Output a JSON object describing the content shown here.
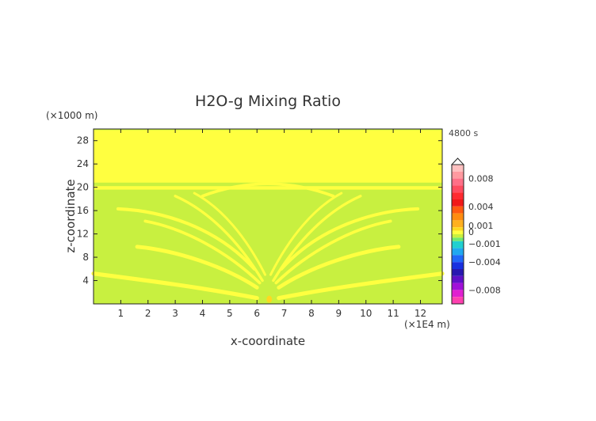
{
  "chart_data": {
    "type": "heatmap",
    "title": "H2O-g Mixing Ratio",
    "time_label": "4800 s",
    "xlabel": "x-coordinate",
    "ylabel": "z-coordinate",
    "x_unit": "(×1E4 m)",
    "y_unit": "(×1000 m)",
    "xlim": [
      0,
      12.8
    ],
    "ylim": [
      0,
      30
    ],
    "x_ticks": [
      1,
      2,
      3,
      4,
      5,
      6,
      7,
      8,
      9,
      10,
      11,
      12
    ],
    "y_ticks": [
      4,
      8,
      12,
      16,
      20,
      24,
      28
    ],
    "background_color": "#c8f040",
    "colorbar": {
      "labels": [
        {
          "value": 0.008,
          "text": "0.008"
        },
        {
          "value": 0.004,
          "text": "0.004"
        },
        {
          "value": 0.001,
          "text": "0.001"
        },
        {
          "value": 0,
          "text": "0"
        },
        {
          "value": -0.001,
          "text": "−0.001"
        },
        {
          "value": -0.004,
          "text": "−0.004"
        },
        {
          "value": -0.008,
          "text": "−0.008"
        }
      ],
      "bands": [
        {
          "from": 0.009,
          "to": 0.01,
          "color": "#ffc0c0"
        },
        {
          "from": 0.008,
          "to": 0.009,
          "color": "#ff9aa0"
        },
        {
          "from": 0.007,
          "to": 0.008,
          "color": "#ff7088"
        },
        {
          "from": 0.006,
          "to": 0.007,
          "color": "#ff4c60"
        },
        {
          "from": 0.005,
          "to": 0.006,
          "color": "#ff2a30"
        },
        {
          "from": 0.004,
          "to": 0.005,
          "color": "#f01818"
        },
        {
          "from": 0.003,
          "to": 0.004,
          "color": "#ff5a10"
        },
        {
          "from": 0.002,
          "to": 0.003,
          "color": "#ff8c10"
        },
        {
          "from": 0.001,
          "to": 0.002,
          "color": "#ffb020"
        },
        {
          "from": 0.0005,
          "to": 0.001,
          "color": "#ffd820"
        },
        {
          "from": 0.0,
          "to": 0.0005,
          "color": "#ffff40"
        },
        {
          "from": -0.0005,
          "to": 0.0,
          "color": "#c8f040"
        },
        {
          "from": -0.001,
          "to": -0.0005,
          "color": "#70e870"
        },
        {
          "from": -0.002,
          "to": -0.001,
          "color": "#20d0d0"
        },
        {
          "from": -0.003,
          "to": -0.002,
          "color": "#20a8f0"
        },
        {
          "from": -0.004,
          "to": -0.003,
          "color": "#2068f8"
        },
        {
          "from": -0.005,
          "to": -0.004,
          "color": "#1830e0"
        },
        {
          "from": -0.006,
          "to": -0.005,
          "color": "#2818b0"
        },
        {
          "from": -0.007,
          "to": -0.006,
          "color": "#6010c8"
        },
        {
          "from": -0.008,
          "to": -0.007,
          "color": "#a010d8"
        },
        {
          "from": -0.009,
          "to": -0.008,
          "color": "#e020d0"
        },
        {
          "from": -0.01,
          "to": -0.009,
          "color": "#ff40b0"
        }
      ]
    },
    "features": [
      {
        "kind": "band",
        "level": 0.0003,
        "x": [
          0,
          12.8
        ],
        "z": [
          20.8,
          29.8
        ]
      },
      {
        "kind": "band",
        "level": 0.0003,
        "x": [
          0,
          12.8
        ],
        "z": [
          19.6,
          20.2
        ]
      },
      {
        "kind": "ellipse",
        "level": 0.0003,
        "cx": 1.0,
        "cz": 23.3,
        "rx": 0.25,
        "rz": 0.5
      },
      {
        "kind": "ellipse",
        "level": 0.0003,
        "cx": 11.8,
        "cz": 23.3,
        "rx": 0.25,
        "rz": 0.5
      },
      {
        "kind": "arc",
        "level": 0.0003,
        "z0": 21.5,
        "z1": 18.5,
        "x_left": [
          6.0,
          4.0
        ],
        "x_right": [
          6.8,
          8.8
        ]
      },
      {
        "kind": "streak",
        "level": 0.0003,
        "pts": [
          [
            0.9,
            16.3
          ],
          [
            2.5,
            16.0
          ],
          [
            4.5,
            13.2
          ],
          [
            5.9,
            6.0
          ]
        ],
        "w": 0.55
      },
      {
        "kind": "streak",
        "level": 0.0003,
        "pts": [
          [
            1.9,
            14.2
          ],
          [
            3.3,
            13.0
          ],
          [
            4.9,
            9.0
          ],
          [
            6.1,
            3.6
          ]
        ],
        "w": 0.5
      },
      {
        "kind": "streak",
        "level": 0.0003,
        "pts": [
          [
            3.0,
            18.5
          ],
          [
            4.2,
            16.0
          ],
          [
            5.3,
            11.0
          ],
          [
            6.2,
            4.0
          ]
        ],
        "w": 0.45
      },
      {
        "kind": "streak",
        "level": 0.0003,
        "pts": [
          [
            3.7,
            19.0
          ],
          [
            4.7,
            16.5
          ],
          [
            5.6,
            11.5
          ],
          [
            6.3,
            5.0
          ]
        ],
        "w": 0.4
      },
      {
        "kind": "streak",
        "level": 0.0003,
        "pts": [
          [
            1.6,
            9.8
          ],
          [
            3.0,
            9.2
          ],
          [
            4.8,
            6.5
          ],
          [
            6.0,
            2.8
          ]
        ],
        "w": 0.65
      },
      {
        "kind": "streak",
        "level": 0.0003,
        "pts": [
          [
            0.0,
            5.2
          ],
          [
            2.0,
            4.0
          ],
          [
            4.0,
            2.8
          ],
          [
            6.0,
            1.0
          ]
        ],
        "w": 0.7
      },
      {
        "kind": "streak",
        "level": 0.0003,
        "pts": [
          [
            11.9,
            16.3
          ],
          [
            10.3,
            16.0
          ],
          [
            8.3,
            13.2
          ],
          [
            6.9,
            6.0
          ]
        ],
        "w": 0.55
      },
      {
        "kind": "streak",
        "level": 0.0003,
        "pts": [
          [
            10.9,
            14.2
          ],
          [
            9.5,
            13.0
          ],
          [
            7.9,
            9.0
          ],
          [
            6.7,
            3.6
          ]
        ],
        "w": 0.5
      },
      {
        "kind": "streak",
        "level": 0.0003,
        "pts": [
          [
            9.8,
            18.5
          ],
          [
            8.6,
            16.0
          ],
          [
            7.5,
            11.0
          ],
          [
            6.6,
            4.0
          ]
        ],
        "w": 0.45
      },
      {
        "kind": "streak",
        "level": 0.0003,
        "pts": [
          [
            9.1,
            19.0
          ],
          [
            8.1,
            16.5
          ],
          [
            7.2,
            11.5
          ],
          [
            6.5,
            5.0
          ]
        ],
        "w": 0.4
      },
      {
        "kind": "streak",
        "level": 0.0003,
        "pts": [
          [
            11.2,
            9.8
          ],
          [
            9.8,
            9.2
          ],
          [
            8.0,
            6.5
          ],
          [
            6.8,
            2.8
          ]
        ],
        "w": 0.65
      },
      {
        "kind": "streak",
        "level": 0.0003,
        "pts": [
          [
            12.8,
            5.2
          ],
          [
            10.8,
            4.0
          ],
          [
            8.8,
            2.8
          ],
          [
            6.8,
            1.0
          ]
        ],
        "w": 0.7
      },
      {
        "kind": "ellipse",
        "level": 0.0008,
        "cx": 6.45,
        "cz": 0.8,
        "rx": 0.1,
        "rz": 0.6
      }
    ]
  }
}
